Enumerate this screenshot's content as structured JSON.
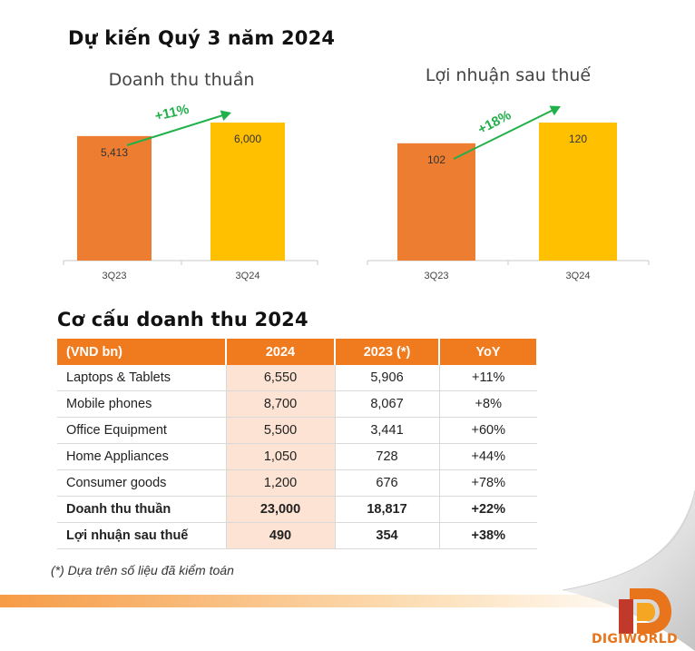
{
  "title_forecast": "Dự kiến Quý 3 năm 2024",
  "title_structure": "Cơ cấu doanh thu 2024",
  "chart_data": [
    {
      "type": "bar",
      "title": "Doanh thu thuần",
      "categories": [
        "3Q23",
        "3Q24"
      ],
      "values": [
        5413,
        6000
      ],
      "value_labels": [
        "5,413",
        "6,000"
      ],
      "colors": [
        "#ed7d31",
        "#ffc000"
      ],
      "growth_label": "+11%",
      "ylim": [
        0,
        7500
      ]
    },
    {
      "type": "bar",
      "title": "Lợi nhuận sau thuế",
      "categories": [
        "3Q23",
        "3Q24"
      ],
      "values": [
        102,
        120
      ],
      "value_labels": [
        "102",
        "120"
      ],
      "colors": [
        "#ed7d31",
        "#ffc000"
      ],
      "growth_label": "+18%",
      "ylim": [
        0,
        150
      ]
    }
  ],
  "table": {
    "headers": [
      "(VND bn)",
      "2024",
      "2023 (*)",
      "YoY"
    ],
    "rows": [
      [
        "Laptops & Tablets",
        "6,550",
        "5,906",
        "+11%"
      ],
      [
        "Mobile phones",
        "8,700",
        "8,067",
        "+8%"
      ],
      [
        "Office Equipment",
        "5,500",
        "3,441",
        "+60%"
      ],
      [
        "Home Appliances",
        "1,050",
        "728",
        "+44%"
      ],
      [
        "Consumer goods",
        "1,200",
        "676",
        "+78%"
      ],
      [
        "Doanh thu thuần",
        "23,000",
        "18,817",
        "+22%"
      ],
      [
        "Lợi nhuận sau thuế",
        "490",
        "354",
        "+38%"
      ]
    ]
  },
  "footnote": "(*) Dựa trên số liệu đã kiểm toán",
  "logo": {
    "icon": "digiworld-logo-icon",
    "text": "DIGIWORLD"
  },
  "colors": {
    "header_orange": "#f07a1e",
    "highlight": "#fde3d3",
    "arrow_green": "#22b04b"
  }
}
